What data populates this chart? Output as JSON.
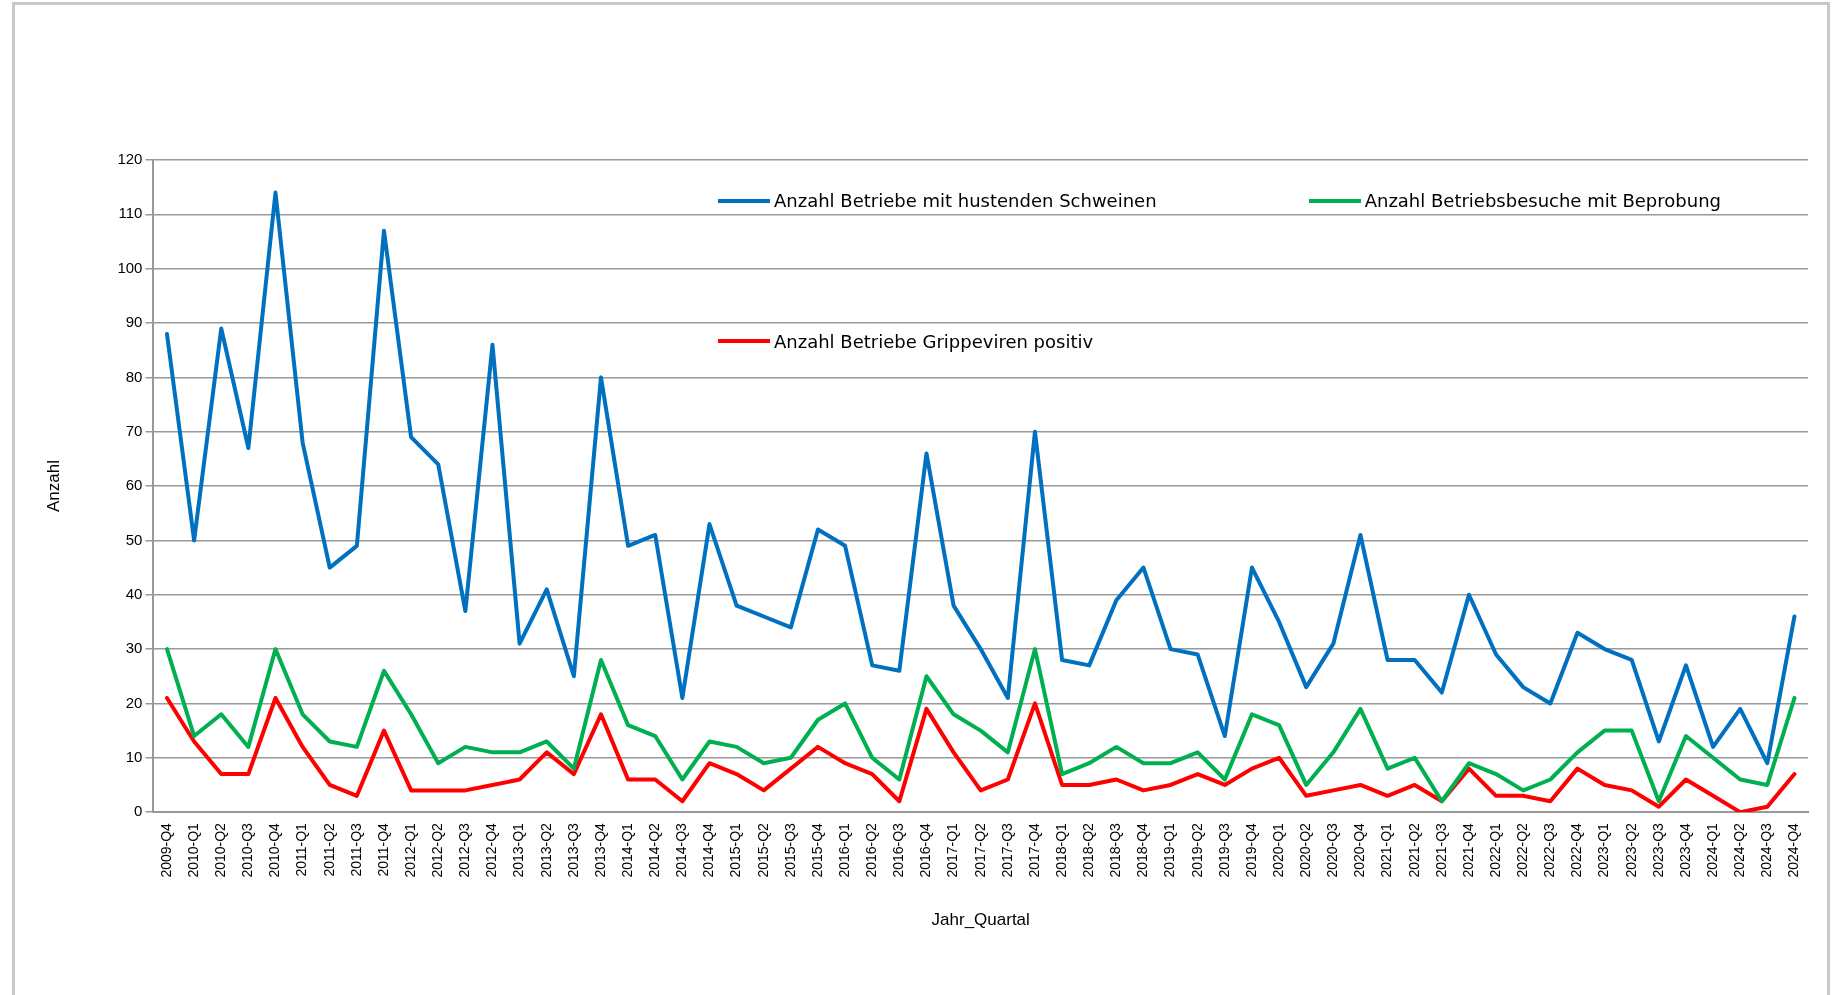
{
  "chart_data": {
    "type": "line",
    "xlabel": "Jahr_Quartal",
    "ylabel": "Anzahl",
    "categories": [
      "2009-Q4",
      "2010-Q1",
      "2010-Q2",
      "2010-Q3",
      "2010-Q4",
      "2011-Q1",
      "2011-Q2",
      "2011-Q3",
      "2011-Q4",
      "2012-Q1",
      "2012-Q2",
      "2012-Q3",
      "2012-Q4",
      "2013-Q1",
      "2013-Q2",
      "2013-Q3",
      "2013-Q4",
      "2014-Q1",
      "2014-Q2",
      "2014-Q3",
      "2014-Q4",
      "2015-Q1",
      "2015-Q2",
      "2015-Q3",
      "2015-Q4",
      "2016-Q1",
      "2016-Q2",
      "2016-Q3",
      "2016-Q4",
      "2017-Q1",
      "2017-Q2",
      "2017-Q3",
      "2017-Q4",
      "2018-Q1",
      "2018-Q2",
      "2018-Q3",
      "2018-Q4",
      "2019-Q1",
      "2019-Q2",
      "2019-Q3",
      "2019-Q4",
      "2020-Q1",
      "2020-Q2",
      "2020-Q3",
      "2020-Q4",
      "2021-Q1",
      "2021-Q2",
      "2021-Q3",
      "2021-Q4",
      "2022-Q1",
      "2022-Q2",
      "2022-Q3",
      "2022-Q4",
      "2023-Q1",
      "2023-Q2",
      "2023-Q3",
      "2023-Q4",
      "2024-Q1",
      "2024-Q2",
      "2024-Q3",
      "2024-Q4"
    ],
    "series": [
      {
        "name": "Anzahl Betriebe mit hustenden Schweinen",
        "color": "#0070c0",
        "values": [
          88,
          50,
          89,
          67,
          114,
          68,
          45,
          49,
          107,
          69,
          64,
          37,
          86,
          31,
          41,
          25,
          80,
          49,
          51,
          21,
          53,
          38,
          36,
          34,
          52,
          49,
          27,
          26,
          66,
          38,
          30,
          21,
          70,
          28,
          27,
          39,
          45,
          30,
          29,
          14,
          45,
          35,
          23,
          31,
          51,
          28,
          28,
          22,
          40,
          29,
          23,
          20,
          33,
          30,
          28,
          13,
          27,
          12,
          19,
          9,
          36
        ]
      },
      {
        "name": "Anzahl Betriebsbesuche mit Beprobung",
        "color": "#00b050",
        "values": [
          30,
          14,
          18,
          12,
          30,
          18,
          13,
          12,
          26,
          18,
          9,
          12,
          11,
          11,
          13,
          8,
          28,
          16,
          14,
          6,
          13,
          12,
          9,
          10,
          17,
          20,
          10,
          6,
          25,
          18,
          15,
          11,
          30,
          7,
          9,
          12,
          9,
          9,
          11,
          6,
          18,
          16,
          5,
          11,
          19,
          8,
          10,
          2,
          9,
          7,
          4,
          6,
          11,
          15,
          15,
          2,
          14,
          10,
          6,
          5,
          21
        ]
      },
      {
        "name": "Anzahl Betriebe Grippeviren positiv",
        "color": "#ff0000",
        "values": [
          21,
          13,
          7,
          7,
          21,
          12,
          5,
          3,
          15,
          4,
          4,
          4,
          5,
          6,
          11,
          7,
          18,
          6,
          6,
          2,
          9,
          7,
          4,
          8,
          12,
          9,
          7,
          2,
          19,
          11,
          4,
          6,
          20,
          5,
          5,
          6,
          4,
          5,
          7,
          5,
          8,
          10,
          3,
          4,
          5,
          3,
          5,
          2,
          8,
          3,
          3,
          2,
          8,
          5,
          4,
          1,
          6,
          3,
          0,
          1,
          7
        ]
      }
    ],
    "ylim": [
      0,
      120
    ],
    "yticks": [
      0,
      10,
      20,
      30,
      40,
      50,
      60,
      70,
      80,
      90,
      100,
      110,
      120
    ],
    "grid": "y",
    "legend": "top",
    "marker": "none",
    "line_style": "solid"
  }
}
